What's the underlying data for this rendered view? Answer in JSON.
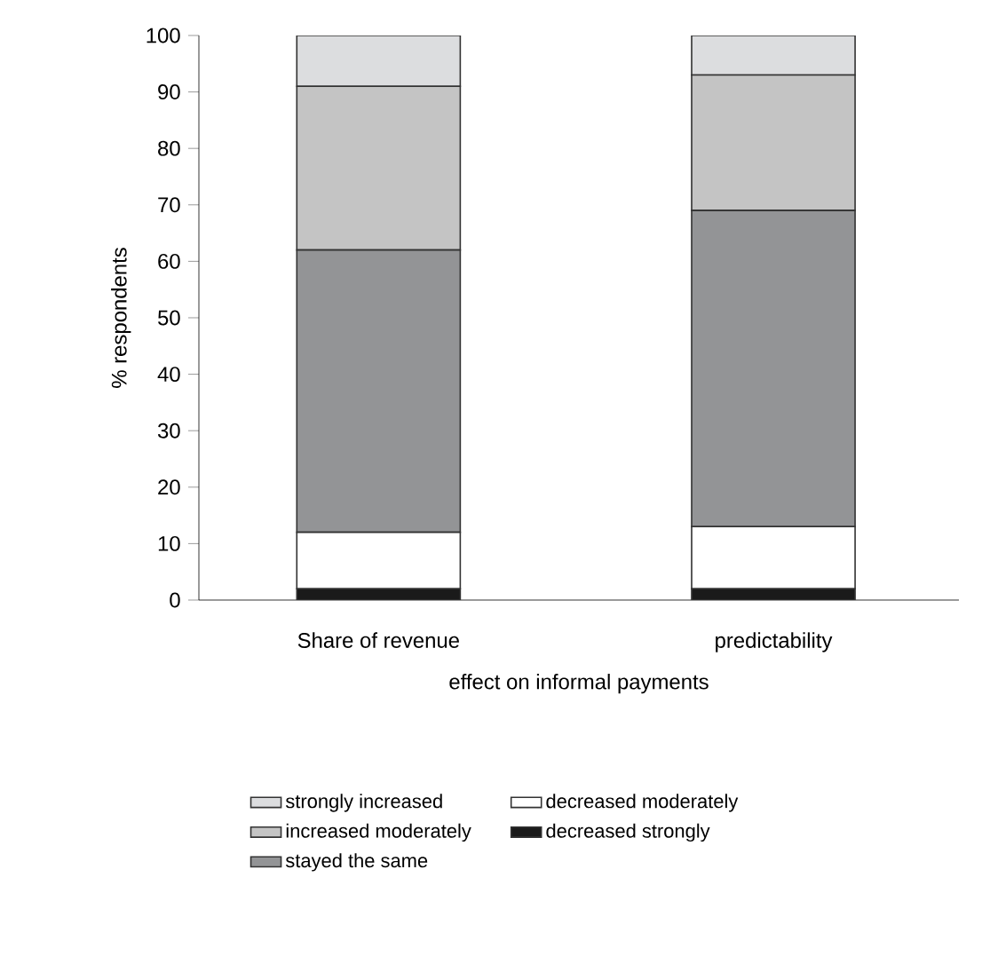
{
  "chart_data": {
    "type": "bar",
    "stacked": true,
    "xlabel": "effect on informal payments",
    "ylabel": "% respondents",
    "categories": [
      "Share of revenue",
      "predictability"
    ],
    "series": [
      {
        "name": "decreased strongly",
        "color": "#1a1a1a",
        "values": [
          2,
          2
        ]
      },
      {
        "name": "decreased moderately",
        "color": "#ffffff",
        "values": [
          10,
          11
        ]
      },
      {
        "name": "stayed the same",
        "color": "#939496",
        "values": [
          50,
          56
        ]
      },
      {
        "name": "increased moderately",
        "color": "#c4c4c4",
        "values": [
          29,
          24
        ]
      },
      {
        "name": "strongly increased",
        "color": "#dcdddf",
        "values": [
          9,
          7
        ]
      }
    ],
    "ylim": [
      0,
      100
    ],
    "yticks": [
      0,
      10,
      20,
      30,
      40,
      50,
      60,
      70,
      80,
      90,
      100
    ],
    "legend": "bottom"
  }
}
